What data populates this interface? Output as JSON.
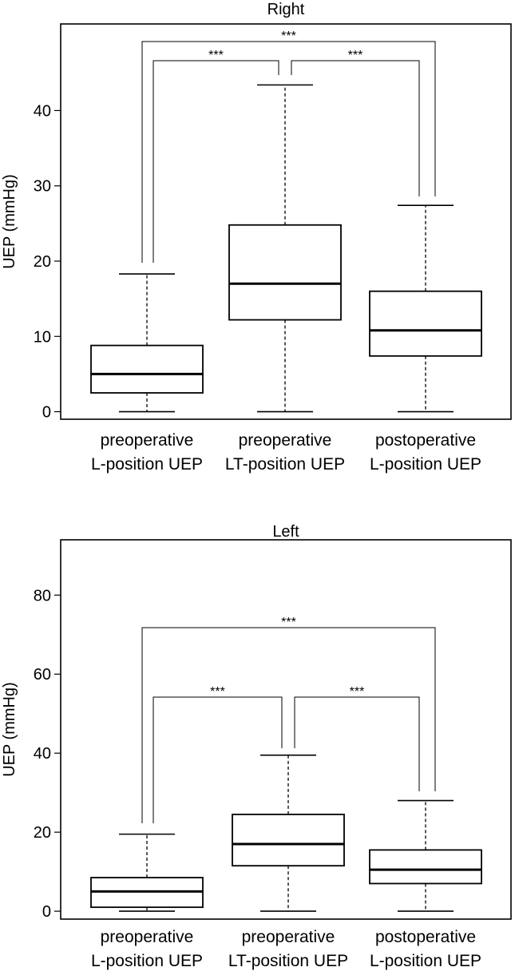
{
  "chart_data": [
    {
      "type": "box",
      "title": "Right",
      "ylabel": "UEP (mmHg)",
      "ylim": [
        -1,
        51.5
      ],
      "yticks": [
        0,
        10,
        20,
        30,
        40
      ],
      "categories": [
        [
          "preoperative",
          "L-position UEP"
        ],
        [
          "preoperative",
          "LT-position UEP"
        ],
        [
          "postoperative",
          "L-position UEP"
        ]
      ],
      "boxes": [
        {
          "min": 0,
          "q1": 2.5,
          "median": 5,
          "q3": 8.8,
          "max": 18.3
        },
        {
          "min": 0,
          "q1": 12.2,
          "median": 17,
          "q3": 24.8,
          "max": 43.4
        },
        {
          "min": 0,
          "q1": 7.4,
          "median": 10.8,
          "q3": 16,
          "max": 27.4
        }
      ],
      "comparisons": [
        {
          "from": 0,
          "to": 2,
          "label": "***"
        },
        {
          "from": 0,
          "to": 1,
          "label": "***"
        },
        {
          "from": 1,
          "to": 2,
          "label": "***"
        }
      ]
    },
    {
      "type": "box",
      "title": "Left",
      "ylabel": "UEP (mmHg)",
      "ylim": [
        -2,
        94
      ],
      "yticks": [
        0,
        20,
        40,
        60,
        80
      ],
      "categories": [
        [
          "preoperative",
          "L-position UEP"
        ],
        [
          "preoperative",
          "LT-position UEP"
        ],
        [
          "postoperative",
          "L-position UEP"
        ]
      ],
      "boxes": [
        {
          "min": 0,
          "q1": 1,
          "median": 5,
          "q3": 8.5,
          "max": 19.5
        },
        {
          "min": 0,
          "q1": 11.5,
          "median": 17,
          "q3": 24.5,
          "max": 39.5
        },
        {
          "min": 0,
          "q1": 7,
          "median": 10.5,
          "q3": 15.5,
          "max": 28
        }
      ],
      "comparisons": [
        {
          "from": 0,
          "to": 2,
          "label": "***"
        },
        {
          "from": 0,
          "to": 1,
          "label": "***"
        },
        {
          "from": 1,
          "to": 2,
          "label": "***"
        }
      ]
    }
  ]
}
